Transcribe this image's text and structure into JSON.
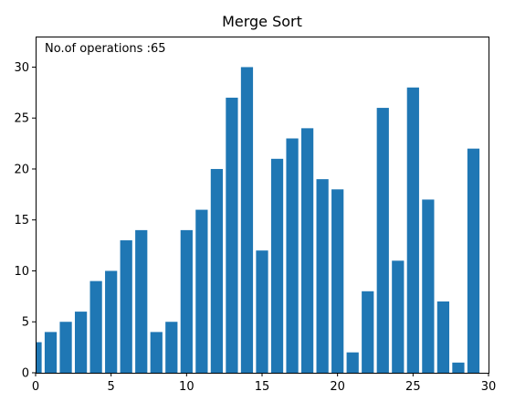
{
  "chart_data": {
    "type": "bar",
    "title": "Merge Sort",
    "xlabel": "",
    "ylabel": "",
    "annotation": "No.of operations :65",
    "x": [
      0,
      1,
      2,
      3,
      4,
      5,
      6,
      7,
      8,
      9,
      10,
      11,
      12,
      13,
      14,
      15,
      16,
      17,
      18,
      19,
      20,
      21,
      22,
      23,
      24,
      25,
      26,
      27,
      28,
      29,
      30
    ],
    "values": [
      3,
      4,
      5,
      6,
      9,
      10,
      13,
      14,
      4,
      5,
      14,
      16,
      20,
      27,
      30,
      12,
      21,
      23,
      24,
      19,
      18,
      2,
      8,
      26,
      11,
      28,
      17,
      7,
      1,
      22,
      0
    ],
    "xlim": [
      0,
      30
    ],
    "ylim": [
      0,
      33
    ],
    "xticks": [
      0,
      5,
      10,
      15,
      20,
      25,
      30
    ],
    "yticks": [
      0,
      5,
      10,
      15,
      20,
      25,
      30
    ],
    "bar_color": "#1f77b4",
    "grid": false,
    "legend": "none"
  }
}
